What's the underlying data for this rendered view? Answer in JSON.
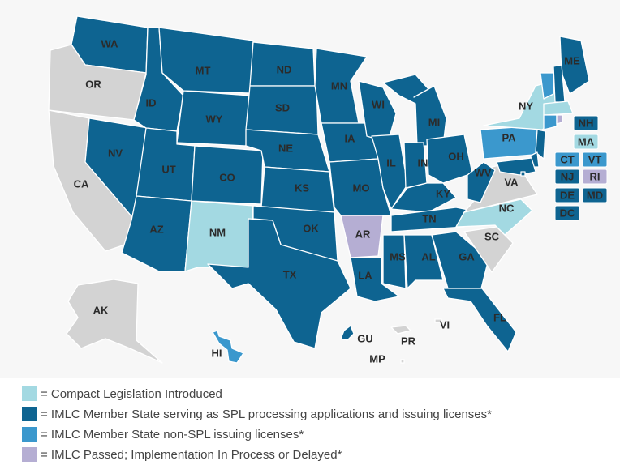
{
  "states": [
    {
      "label": "WA",
      "color": "#0e6491"
    },
    {
      "label": "OR",
      "color": "#d3d3d3"
    },
    {
      "label": "CA",
      "color": "#d3d3d3"
    },
    {
      "label": "NV",
      "color": "#0e6491"
    },
    {
      "label": "ID",
      "color": "#0e6491"
    },
    {
      "label": "MT",
      "color": "#0e6491"
    },
    {
      "label": "WY",
      "color": "#0e6491"
    },
    {
      "label": "UT",
      "color": "#0e6491"
    },
    {
      "label": "CO",
      "color": "#0e6491"
    },
    {
      "label": "AZ",
      "color": "#0e6491"
    },
    {
      "label": "NM",
      "color": "#a3d9e2"
    },
    {
      "label": "ND",
      "color": "#0e6491"
    },
    {
      "label": "SD",
      "color": "#0e6491"
    },
    {
      "label": "NE",
      "color": "#0e6491"
    },
    {
      "label": "KS",
      "color": "#0e6491"
    },
    {
      "label": "OK",
      "color": "#0e6491"
    },
    {
      "label": "TX",
      "color": "#0e6491"
    },
    {
      "label": "MN",
      "color": "#0e6491"
    },
    {
      "label": "IA",
      "color": "#0e6491"
    },
    {
      "label": "MO",
      "color": "#0e6491"
    },
    {
      "label": "AR",
      "color": "#b5aed3"
    },
    {
      "label": "LA",
      "color": "#0e6491"
    },
    {
      "label": "WI",
      "color": "#0e6491"
    },
    {
      "label": "IL",
      "color": "#0e6491"
    },
    {
      "label": "MI",
      "color": "#0e6491"
    },
    {
      "label": "IN",
      "color": "#0e6491"
    },
    {
      "label": "OH",
      "color": "#0e6491"
    },
    {
      "label": "KY",
      "color": "#0e6491"
    },
    {
      "label": "TN",
      "color": "#0e6491"
    },
    {
      "label": "MS",
      "color": "#0e6491"
    },
    {
      "label": "AL",
      "color": "#0e6491"
    },
    {
      "label": "GA",
      "color": "#0e6491"
    },
    {
      "label": "FL",
      "color": "#0e6491"
    },
    {
      "label": "SC",
      "color": "#d3d3d3"
    },
    {
      "label": "NC",
      "color": "#a3d9e2"
    },
    {
      "label": "VA",
      "color": "#d3d3d3"
    },
    {
      "label": "WV",
      "color": "#0e6491"
    },
    {
      "label": "PA",
      "color": "#3b98cd"
    },
    {
      "label": "NY",
      "color": "#a3d9e2"
    },
    {
      "label": "ME",
      "color": "#0e6491"
    },
    {
      "label": "NH",
      "color": "#0e6491"
    },
    {
      "label": "VT",
      "color": "#3b98cd"
    },
    {
      "label": "MA",
      "color": "#a3d9e2"
    },
    {
      "label": "CT",
      "color": "#3b98cd"
    },
    {
      "label": "RI",
      "color": "#b5aed3"
    },
    {
      "label": "NJ",
      "color": "#0e6491"
    },
    {
      "label": "DE",
      "color": "#0e6491"
    },
    {
      "label": "MD",
      "color": "#0e6491"
    },
    {
      "label": "DC",
      "color": "#0e6491"
    },
    {
      "label": "AK",
      "color": "#d3d3d3"
    },
    {
      "label": "HI",
      "color": "#3b98cd"
    },
    {
      "label": "GU",
      "color": "#0e6491"
    },
    {
      "label": "PR",
      "color": "#d3d3d3"
    },
    {
      "label": "VI",
      "color": "#d3d3d3"
    },
    {
      "label": "MP",
      "color": "#d3d3d3"
    }
  ],
  "legend": [
    {
      "color": "#a3d9e2",
      "label": "= Compact Legislation Introduced"
    },
    {
      "color": "#0e6491",
      "label": "= IMLC Member State serving as SPL processing applications and issuing licenses*"
    },
    {
      "color": "#3b98cd",
      "label": "= IMLC Member State non-SPL issuing licenses*"
    },
    {
      "color": "#b5aed3",
      "label": "= IMLC Passed; Implementation In Process or Delayed*"
    }
  ]
}
